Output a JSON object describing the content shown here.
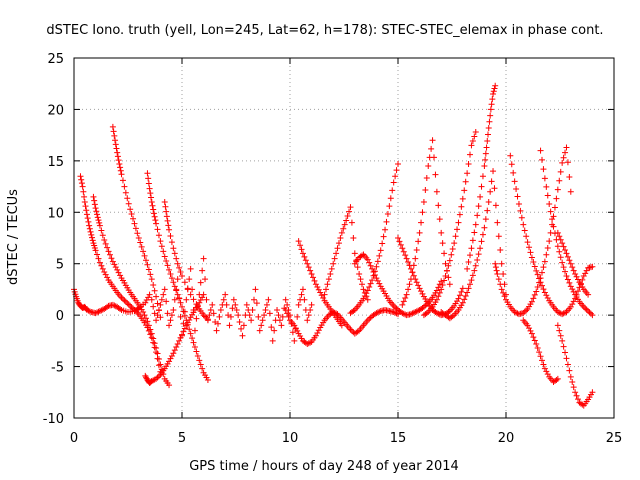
{
  "chart_data": {
    "type": "scatter",
    "title": "dSTEC Iono. truth (yell, Lon=245, Lat=62, h=178): STEC-STEC_elemax in phase cont.",
    "xlabel": "GPS time / hours of day 248 of year 2014",
    "ylabel": "dSTEC  / TECUs",
    "xlim": [
      0,
      25
    ],
    "ylim": [
      -10,
      25
    ],
    "x_ticks": [
      "0",
      "5",
      "10",
      "15",
      "20",
      "25"
    ],
    "y_ticks": [
      "-10",
      "-5",
      "0",
      "5",
      "10",
      "15",
      "20",
      "25"
    ],
    "x_tick_values": [
      0,
      5,
      10,
      15,
      20,
      25
    ],
    "y_tick_values": [
      -10,
      -5,
      0,
      5,
      10,
      15,
      20,
      25
    ],
    "grid": true,
    "legend": "none",
    "marker_color": "#ff0000",
    "marker": "plus",
    "series": [
      {
        "x": [
          0.0,
          0.1,
          0.2,
          0.3,
          0.4,
          0.5,
          0.6,
          0.8,
          1.0,
          1.2,
          1.4,
          1.6,
          1.8,
          2.0,
          2.2,
          2.5,
          2.8,
          3.0,
          3.3,
          3.5
        ],
        "y": [
          2.5,
          1.8,
          1.2,
          0.9,
          0.7,
          0.8,
          0.5,
          0.3,
          0.2,
          0.4,
          0.6,
          0.9,
          1.0,
          0.8,
          0.5,
          0.3,
          0.4,
          0.7,
          1.2,
          2.0
        ]
      },
      {
        "x": [
          0.3,
          0.4,
          0.5,
          0.6,
          0.7,
          0.8,
          0.9,
          1.0,
          1.2,
          1.4,
          1.6,
          1.8,
          2.0,
          2.2,
          2.4,
          2.6,
          2.8,
          3.0,
          3.2,
          3.4,
          3.6,
          3.8,
          4.0
        ],
        "y": [
          13.5,
          12.5,
          11.0,
          9.8,
          8.7,
          7.8,
          7.0,
          6.3,
          5.1,
          4.2,
          3.4,
          2.8,
          2.2,
          1.7,
          1.3,
          0.9,
          0.5,
          0.1,
          -0.5,
          -1.2,
          -2.2,
          -3.6,
          -5.5
        ]
      },
      {
        "x": [
          0.9,
          1.0,
          1.1,
          1.2,
          1.4,
          1.6,
          1.8,
          2.0,
          2.2,
          2.4,
          2.6,
          2.8,
          3.0,
          3.2,
          3.4,
          3.6,
          3.8,
          4.0,
          4.2,
          4.4
        ],
        "y": [
          11.5,
          10.4,
          9.5,
          8.7,
          7.3,
          6.2,
          5.2,
          4.4,
          3.6,
          2.9,
          2.2,
          1.6,
          1.0,
          0.3,
          -0.6,
          -1.8,
          -3.2,
          -4.8,
          -6.2,
          -6.8
        ]
      },
      {
        "x": [
          1.8,
          1.9,
          2.0,
          2.1,
          2.2,
          2.4,
          2.6,
          2.8,
          3.0,
          3.2,
          3.4,
          3.6,
          3.8,
          4.0
        ],
        "y": [
          18.3,
          17.0,
          15.8,
          14.7,
          13.7,
          11.9,
          10.3,
          8.9,
          7.5,
          6.2,
          4.9,
          3.5,
          1.8,
          -0.2
        ]
      },
      {
        "x": [
          3.4,
          3.5,
          3.6,
          3.7,
          3.8,
          4.0,
          4.2,
          4.4,
          4.6,
          4.8,
          5.0,
          5.2,
          5.4,
          5.6,
          5.8,
          6.0,
          6.2
        ],
        "y": [
          13.8,
          12.3,
          11.0,
          9.9,
          8.9,
          7.2,
          5.7,
          4.4,
          3.2,
          2.0,
          0.8,
          -0.5,
          -1.8,
          -3.1,
          -4.4,
          -5.6,
          -6.3
        ]
      },
      {
        "x": [
          3.3,
          3.4,
          3.5,
          3.6,
          3.8,
          4.0,
          4.2,
          4.4,
          4.6,
          4.8,
          5.0,
          5.2,
          5.4,
          5.6,
          5.8,
          6.0
        ],
        "y": [
          -5.9,
          -6.3,
          -6.6,
          -6.4,
          -6.2,
          -5.8,
          -5.2,
          -4.5,
          -3.7,
          -2.8,
          -1.9,
          -1.0,
          -0.2,
          0.5,
          1.2,
          2.0
        ]
      },
      {
        "x": [
          4.2,
          4.3,
          4.4,
          4.6,
          4.8,
          5.0,
          5.4,
          5.8,
          6.0,
          6.2
        ],
        "y": [
          11.0,
          9.6,
          8.3,
          6.5,
          5.0,
          3.8,
          2.0,
          0.6,
          0.0,
          -0.4
        ]
      },
      {
        "x": [
          3.6,
          3.8,
          4.0,
          4.2,
          4.4,
          4.6,
          4.8,
          5.0,
          5.2,
          5.4,
          5.6,
          5.8,
          6.0,
          6.2,
          6.4,
          6.6,
          6.8,
          7.0,
          7.2,
          7.4,
          7.6,
          7.8,
          8.0,
          8.2,
          8.4,
          8.6,
          8.8,
          9.0,
          9.2,
          9.4,
          9.6,
          9.8,
          10.0,
          10.2,
          10.4,
          10.6,
          10.8,
          11.0
        ],
        "y": [
          1.5,
          -0.5,
          1.0,
          2.5,
          -1.0,
          0.5,
          3.5,
          -2.0,
          1.5,
          4.5,
          -1.5,
          2.0,
          5.5,
          -0.5,
          1.0,
          -1.5,
          0.5,
          2.0,
          -1.0,
          1.5,
          0.0,
          -2.0,
          1.0,
          -0.5,
          2.5,
          -1.5,
          0.0,
          1.5,
          -2.5,
          0.5,
          -1.0,
          1.5,
          0.0,
          -2.5,
          1.0,
          2.5,
          -0.5,
          1.0
        ]
      },
      {
        "x": [
          9.8,
          10.0,
          10.2,
          10.4,
          10.6,
          10.8,
          11.0,
          11.2,
          11.4,
          11.6,
          11.8,
          12.0,
          12.2,
          12.4,
          12.6,
          12.8,
          13.0,
          13.2,
          13.4,
          13.6,
          13.8,
          14.0,
          14.2,
          14.4,
          14.6,
          14.8,
          15.0
        ],
        "y": [
          0.5,
          -0.5,
          -1.0,
          -1.8,
          -2.5,
          -2.8,
          -2.6,
          -2.0,
          -1.2,
          -0.5,
          0.0,
          0.3,
          0.1,
          -0.4,
          -0.9,
          -1.4,
          -1.8,
          -1.5,
          -1.0,
          -0.5,
          -0.1,
          0.2,
          0.4,
          0.5,
          0.4,
          0.3,
          0.1
        ]
      },
      {
        "x": [
          10.4,
          10.6,
          10.8,
          11.0,
          11.2,
          11.4,
          11.6,
          11.8,
          12.0,
          12.2,
          12.4
        ],
        "y": [
          7.2,
          6.0,
          5.0,
          4.0,
          3.0,
          2.2,
          1.4,
          0.8,
          0.2,
          -0.4,
          -1.0
        ]
      },
      {
        "x": [
          11.6,
          11.8,
          12.0,
          12.2,
          12.4,
          12.6,
          12.8,
          13.0,
          13.2,
          13.4,
          13.6
        ],
        "y": [
          2.0,
          3.5,
          5.0,
          6.5,
          8.0,
          9.2,
          10.5,
          6.0,
          4.0,
          2.5,
          1.5
        ]
      },
      {
        "x": [
          12.8,
          13.0,
          13.2,
          13.4,
          13.6,
          13.8,
          14.0,
          14.2,
          14.4,
          14.6,
          14.8,
          15.0
        ],
        "y": [
          0.2,
          0.5,
          1.0,
          1.6,
          2.4,
          3.4,
          4.7,
          6.3,
          8.3,
          10.6,
          12.9,
          14.7
        ]
      },
      {
        "x": [
          13.0,
          13.2,
          13.4,
          13.6,
          13.8,
          14.0,
          14.2,
          14.4,
          14.6,
          14.8,
          15.0,
          15.2,
          15.4,
          15.6,
          15.8,
          16.0,
          16.2,
          16.4,
          16.6,
          16.8,
          17.0
        ],
        "y": [
          5.0,
          5.6,
          5.9,
          5.4,
          4.5,
          3.6,
          2.8,
          2.1,
          1.4,
          0.9,
          0.5,
          0.2,
          0.0,
          0.1,
          0.3,
          0.5,
          0.8,
          1.2,
          1.7,
          2.4,
          3.3
        ]
      },
      {
        "x": [
          15.0,
          15.2,
          15.4,
          15.6,
          15.8,
          16.0,
          16.2,
          16.4,
          16.6,
          16.8,
          17.0,
          17.2,
          17.4,
          17.6,
          17.8,
          18.0
        ],
        "y": [
          7.5,
          6.5,
          5.5,
          4.5,
          3.5,
          2.6,
          1.8,
          1.1,
          0.5,
          0.2,
          0.0,
          0.1,
          0.4,
          0.9,
          1.6,
          2.6
        ]
      },
      {
        "x": [
          15.2,
          15.4,
          15.6,
          15.8,
          16.0,
          16.2,
          16.4,
          16.6,
          16.8,
          17.0,
          17.2,
          17.4
        ],
        "y": [
          1.0,
          2.0,
          3.5,
          5.5,
          8.0,
          11.0,
          14.5,
          17.0,
          12.0,
          8.0,
          5.0,
          3.0
        ]
      },
      {
        "x": [
          16.2,
          16.4,
          16.6,
          16.8,
          17.0,
          17.2,
          17.4,
          17.6,
          17.8,
          18.0,
          18.2,
          18.4,
          18.6
        ],
        "y": [
          0.0,
          0.3,
          0.8,
          1.5,
          2.5,
          3.8,
          5.3,
          7.0,
          9.0,
          11.3,
          13.8,
          16.5,
          17.8
        ]
      },
      {
        "x": [
          17.0,
          17.2,
          17.4,
          17.6,
          17.8,
          18.0,
          18.2,
          18.4,
          18.6,
          18.8,
          19.0,
          19.2,
          19.4,
          19.6,
          19.8,
          20.0
        ],
        "y": [
          0.3,
          0.0,
          -0.3,
          0.0,
          0.5,
          1.2,
          2.2,
          3.4,
          4.8,
          6.5,
          8.5,
          11.0,
          14.0,
          9.0,
          5.0,
          2.0
        ]
      },
      {
        "x": [
          18.2,
          18.4,
          18.6,
          18.8,
          19.0,
          19.1,
          19.2,
          19.3,
          19.4,
          19.5
        ],
        "y": [
          4.5,
          6.5,
          8.8,
          11.5,
          14.5,
          16.3,
          18.2,
          20.0,
          21.5,
          22.3
        ]
      },
      {
        "x": [
          19.5,
          19.6,
          19.8,
          20.0,
          20.2,
          20.4,
          20.6,
          20.8,
          21.0,
          21.2,
          21.4,
          21.6,
          21.8,
          22.0,
          22.2,
          22.4,
          22.6,
          22.8,
          23.0
        ],
        "y": [
          5.0,
          4.0,
          2.5,
          1.5,
          0.8,
          0.3,
          0.1,
          0.2,
          0.6,
          1.3,
          2.3,
          3.6,
          5.2,
          7.2,
          9.6,
          12.2,
          14.8,
          16.3,
          12.0
        ]
      },
      {
        "x": [
          20.2,
          20.4,
          20.6,
          20.8,
          21.0,
          21.2,
          21.4,
          21.6,
          21.8,
          22.0,
          22.2,
          22.4,
          22.6,
          22.8,
          23.0,
          23.2,
          23.4,
          23.6,
          23.8,
          24.0
        ],
        "y": [
          15.5,
          13.0,
          10.8,
          8.8,
          7.1,
          5.6,
          4.3,
          3.2,
          2.2,
          1.4,
          0.8,
          0.3,
          0.1,
          0.3,
          0.8,
          1.6,
          2.7,
          3.8,
          4.6,
          4.7
        ]
      },
      {
        "x": [
          21.6,
          21.8,
          22.0,
          22.2,
          22.4,
          22.6,
          22.8,
          23.0,
          23.2,
          23.4,
          23.6,
          23.8,
          24.0
        ],
        "y": [
          16.0,
          13.3,
          10.8,
          8.6,
          6.7,
          5.1,
          3.8,
          2.8,
          2.0,
          1.3,
          0.8,
          0.4,
          0.0
        ]
      },
      {
        "x": [
          20.8,
          21.0,
          21.2,
          21.4,
          21.6,
          21.8,
          22.0,
          22.2,
          22.4
        ],
        "y": [
          -0.5,
          -1.0,
          -1.8,
          -2.8,
          -4.0,
          -5.2,
          -6.0,
          -6.5,
          -6.2
        ]
      },
      {
        "x": [
          22.4,
          22.6,
          22.8,
          23.0,
          23.2,
          23.4,
          23.6,
          23.8,
          24.0
        ],
        "y": [
          -1.0,
          -2.5,
          -4.2,
          -6.0,
          -7.5,
          -8.5,
          -8.8,
          -8.2,
          -7.5
        ]
      },
      {
        "x": [
          22.4,
          22.6,
          22.8,
          23.0,
          23.2,
          23.4,
          23.6,
          23.8
        ],
        "y": [
          8.0,
          7.0,
          6.0,
          5.0,
          4.0,
          3.2,
          2.5,
          2.0
        ]
      }
    ]
  }
}
